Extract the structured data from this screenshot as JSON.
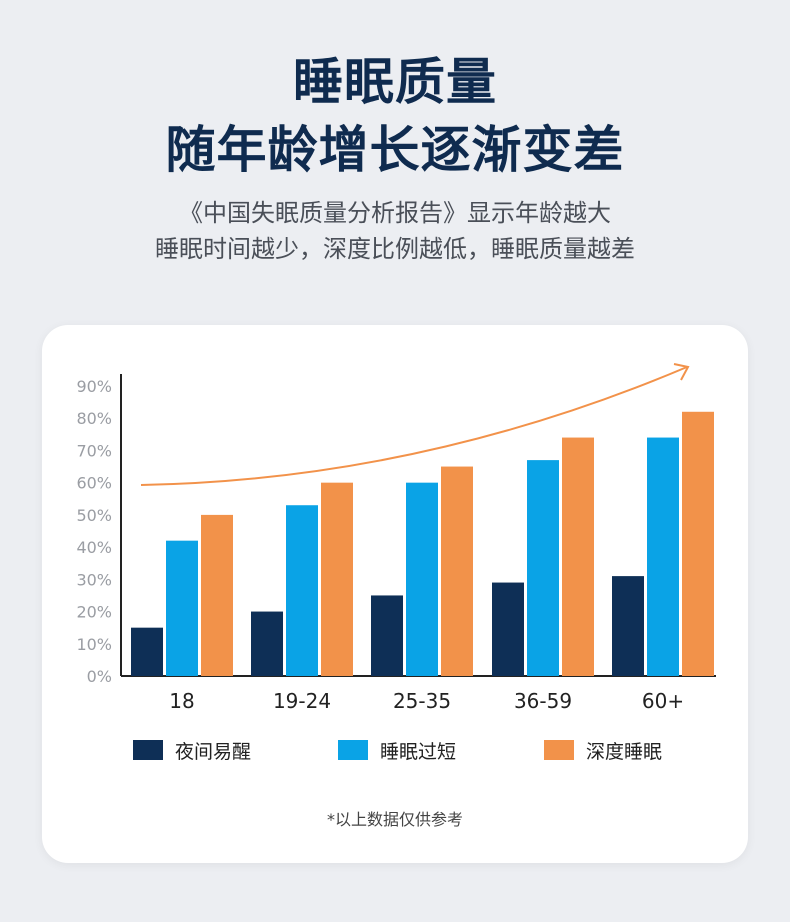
{
  "header": {
    "title_line1": "睡眠质量",
    "title_line2": "随年龄增长逐渐变差",
    "subtitle_line1": "《中国失眠质量分析报告》显示年龄越大",
    "subtitle_line2": "睡眠时间越少，深度比例越低，睡眠质量越差"
  },
  "chart_data": {
    "type": "bar",
    "categories": [
      "18",
      "19-24",
      "25-35",
      "36-59",
      "60+"
    ],
    "series": [
      {
        "name": "夜间易醒",
        "values": [
          15,
          20,
          25,
          29,
          31
        ],
        "color": "#0e2f56"
      },
      {
        "name": "睡眠过短",
        "values": [
          42,
          53,
          60,
          67,
          74
        ],
        "color": "#0aa3e6"
      },
      {
        "name": "深度睡眠",
        "values": [
          50,
          60,
          65,
          74,
          82
        ],
        "color": "#f2924a"
      }
    ],
    "ylim": [
      0,
      90
    ],
    "yticks": [
      "0%",
      "10%",
      "20%",
      "30%",
      "40%",
      "50%",
      "60%",
      "70%",
      "80%",
      "90%"
    ],
    "trend_color": "#f2924a",
    "grid": false,
    "legend_position": "bottom"
  },
  "note": "*以上数据仅供参考"
}
